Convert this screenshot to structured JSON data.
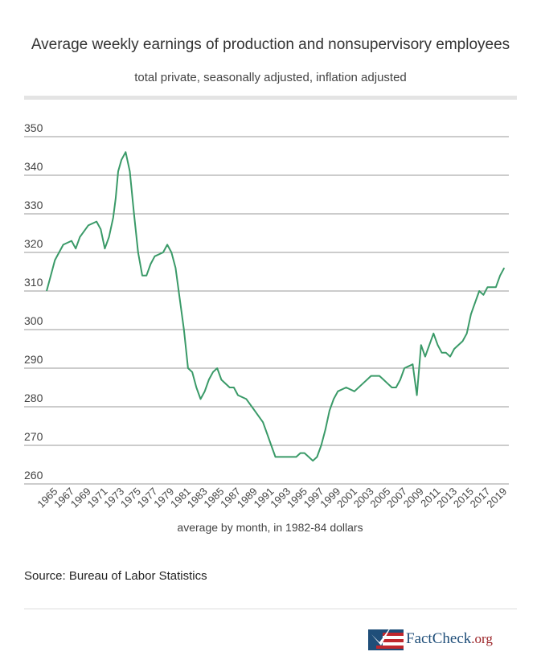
{
  "header": {
    "title": "Average weekly earnings of production and nonsupervisory employees",
    "subtitle": "total private, seasonally adjusted, inflation adjusted"
  },
  "source": "Source: Bureau of Labor Statistics",
  "logo": {
    "text_main": "FactCheck",
    "text_suffix": ".org"
  },
  "chart_data": {
    "type": "line",
    "title": "Average weekly earnings of production and nonsupervisory employees",
    "subtitle": "total private, seasonally adjusted, inflation adjusted",
    "xlabel": "average by month, in 1982-84 dollars",
    "ylabel": "",
    "ylim": [
      260,
      350
    ],
    "yticks": [
      260,
      270,
      280,
      290,
      300,
      310,
      320,
      330,
      340,
      350
    ],
    "xticks": [
      "1965",
      "1967",
      "1969",
      "1971",
      "1973",
      "1975",
      "1977",
      "1979",
      "1981",
      "1983",
      "1985",
      "1987",
      "1989",
      "1991",
      "1993",
      "1995",
      "1997",
      "1999",
      "2001",
      "2003",
      "2005",
      "2007",
      "2009",
      "2011",
      "2013",
      "2015",
      "2017",
      "2019"
    ],
    "grid": true,
    "line_color": "#3a9a68",
    "x": [
      1964.0,
      1964.5,
      1965,
      1965.5,
      1966,
      1967,
      1967.5,
      1968,
      1969,
      1970,
      1970.5,
      1971,
      1971.5,
      1972,
      1972.3,
      1972.6,
      1973,
      1973.5,
      1974,
      1974.5,
      1975,
      1975.5,
      1976,
      1976.5,
      1977,
      1978,
      1978.5,
      1979,
      1979.5,
      1980,
      1980.5,
      1981,
      1981.5,
      1982,
      1982.5,
      1983,
      1983.5,
      1984,
      1984.5,
      1985,
      1986,
      1986.5,
      1987,
      1988,
      1989,
      1990,
      1990.5,
      1991,
      1991.5,
      1992,
      1993,
      1994,
      1994.5,
      1995,
      1995.5,
      1996,
      1996.5,
      1997,
      1997.5,
      1998,
      1998.5,
      1999,
      2000,
      2001,
      2002,
      2003,
      2004,
      2004.5,
      2005,
      2005.5,
      2006,
      2006.5,
      2007,
      2008,
      2008.5,
      2009,
      2009.5,
      2010,
      2010.5,
      2011,
      2011.5,
      2012,
      2012.5,
      2013,
      2014,
      2014.5,
      2015,
      2015.5,
      2016,
      2016.5,
      2017,
      2017.5,
      2018,
      2018.5,
      2019
    ],
    "values": [
      310,
      314,
      318,
      320,
      322,
      323,
      321,
      324,
      327,
      328,
      326,
      321,
      324,
      329,
      334,
      341,
      344,
      346,
      341,
      330,
      320,
      314,
      314,
      317,
      319,
      320,
      322,
      320,
      316,
      308,
      300,
      290,
      289,
      285,
      282,
      284,
      287,
      289,
      290,
      287,
      285,
      285,
      283,
      282,
      279,
      276,
      273,
      270,
      267,
      267,
      267,
      267,
      268,
      268,
      267,
      266,
      267,
      270,
      274,
      279,
      282,
      284,
      285,
      284,
      286,
      288,
      288,
      287,
      286,
      285,
      285,
      287,
      290,
      291,
      283,
      296,
      293,
      296,
      299,
      296,
      294,
      294,
      293,
      295,
      297,
      299,
      304,
      307,
      310,
      309,
      311,
      311,
      311,
      314,
      316
    ]
  }
}
